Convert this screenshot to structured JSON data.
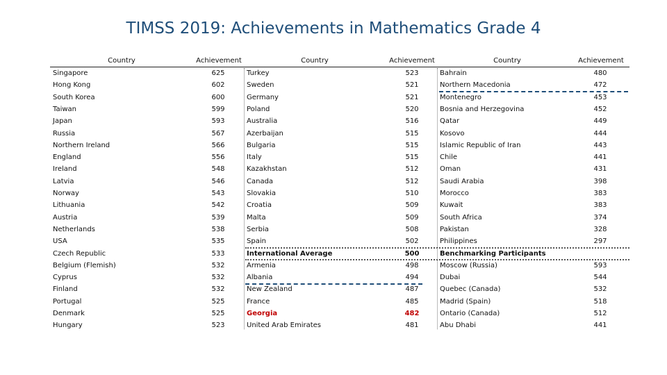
{
  "title": "TIMSS 2019: Achievements in Mathematics Grade 4",
  "headers": {
    "country": "Country",
    "achievement": "Achievement"
  },
  "col1": [
    [
      "Singapore",
      "625"
    ],
    [
      "Hong Kong",
      "602"
    ],
    [
      "South Korea",
      "600"
    ],
    [
      "Taiwan",
      "599"
    ],
    [
      "Japan",
      "593"
    ],
    [
      "Russia",
      "567"
    ],
    [
      "Northern Ireland",
      "566"
    ],
    [
      "England",
      "556"
    ],
    [
      "Ireland",
      "548"
    ],
    [
      "Latvia",
      "546"
    ],
    [
      "Norway",
      "543"
    ],
    [
      "Lithuania",
      "542"
    ],
    [
      "Austria",
      "539"
    ],
    [
      "Netherlands",
      "538"
    ],
    [
      "USA",
      "535"
    ],
    [
      "Czech Republic",
      "533"
    ],
    [
      "Belgium (Flemish)",
      "532"
    ],
    [
      "Cyprus",
      "532"
    ],
    [
      "Finland",
      "532"
    ],
    [
      "Portugal",
      "525"
    ],
    [
      "Denmark",
      "525"
    ],
    [
      "Hungary",
      "523"
    ]
  ],
  "col2": [
    [
      "Turkey",
      "523"
    ],
    [
      "Sweden",
      "521"
    ],
    [
      "Germany",
      "521"
    ],
    [
      "Poland",
      "520"
    ],
    [
      "Australia",
      "516"
    ],
    [
      "Azerbaijan",
      "515"
    ],
    [
      "Bulgaria",
      "515"
    ],
    [
      "Italy",
      "515"
    ],
    [
      "Kazakhstan",
      "512"
    ],
    [
      "Canada",
      "512"
    ],
    [
      "Slovakia",
      "510"
    ],
    [
      "Croatia",
      "509"
    ],
    [
      "Malta",
      "509"
    ],
    [
      "Serbia",
      "508"
    ],
    [
      "Spain",
      "502"
    ],
    [
      "International Average",
      "500"
    ],
    [
      "Armenia",
      "498"
    ],
    [
      "Albania",
      "494"
    ],
    [
      "New Zealand",
      "487"
    ],
    [
      "France",
      "485"
    ],
    [
      "Georgia",
      "482"
    ],
    [
      "United Arab Emirates",
      "481"
    ]
  ],
  "col3": [
    [
      "Bahrain",
      "480"
    ],
    [
      "Northern Macedonia",
      "472"
    ],
    [
      "Montenegro",
      "453"
    ],
    [
      "Bosnia and Herzegovina",
      "452"
    ],
    [
      "Qatar",
      "449"
    ],
    [
      "Kosovo",
      "444"
    ],
    [
      "Islamic Republic of Iran",
      "443"
    ],
    [
      "Chile",
      "441"
    ],
    [
      "Oman",
      "431"
    ],
    [
      "Saudi Arabia",
      "398"
    ],
    [
      "Morocco",
      "383"
    ],
    [
      "Kuwait",
      "383"
    ],
    [
      "South Africa",
      "374"
    ],
    [
      "Pakistan",
      "328"
    ],
    [
      "Philippines",
      "297"
    ],
    [
      "Benchmarking Participants",
      ""
    ],
    [
      "Moscow (Russia)",
      "593"
    ],
    [
      "Dubai",
      "544"
    ],
    [
      "Quebec (Canada)",
      "532"
    ],
    [
      "Madrid (Spain)",
      "518"
    ],
    [
      "Ontario (Canada)",
      "512"
    ],
    [
      "Abu Dhabi",
      "441"
    ]
  ],
  "highlight_color": "#c00000",
  "title_color": "#1f4e79"
}
